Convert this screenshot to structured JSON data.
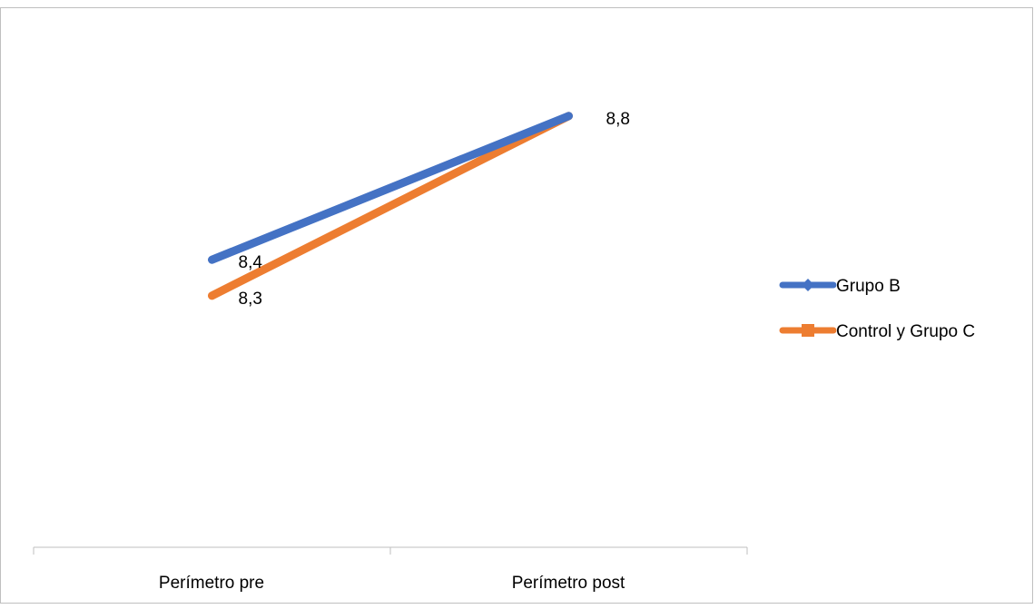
{
  "chart_data": {
    "type": "line",
    "title": "",
    "xlabel": "",
    "ylabel": "",
    "categories": [
      "Perímetro pre",
      "Perímetro post"
    ],
    "ylim": [
      7.6,
      9.1
    ],
    "grid": false,
    "legend_position": "right",
    "series": [
      {
        "name": "Grupo B",
        "values": [
          8.4,
          8.8
        ],
        "labels": [
          "8,4",
          "8,8"
        ],
        "color": "#4472C4",
        "marker": "diamond"
      },
      {
        "name": "Control y Grupo C",
        "values": [
          8.3,
          8.8
        ],
        "labels": [
          "8,3",
          ""
        ],
        "color": "#ED7D31",
        "marker": "square"
      }
    ]
  }
}
